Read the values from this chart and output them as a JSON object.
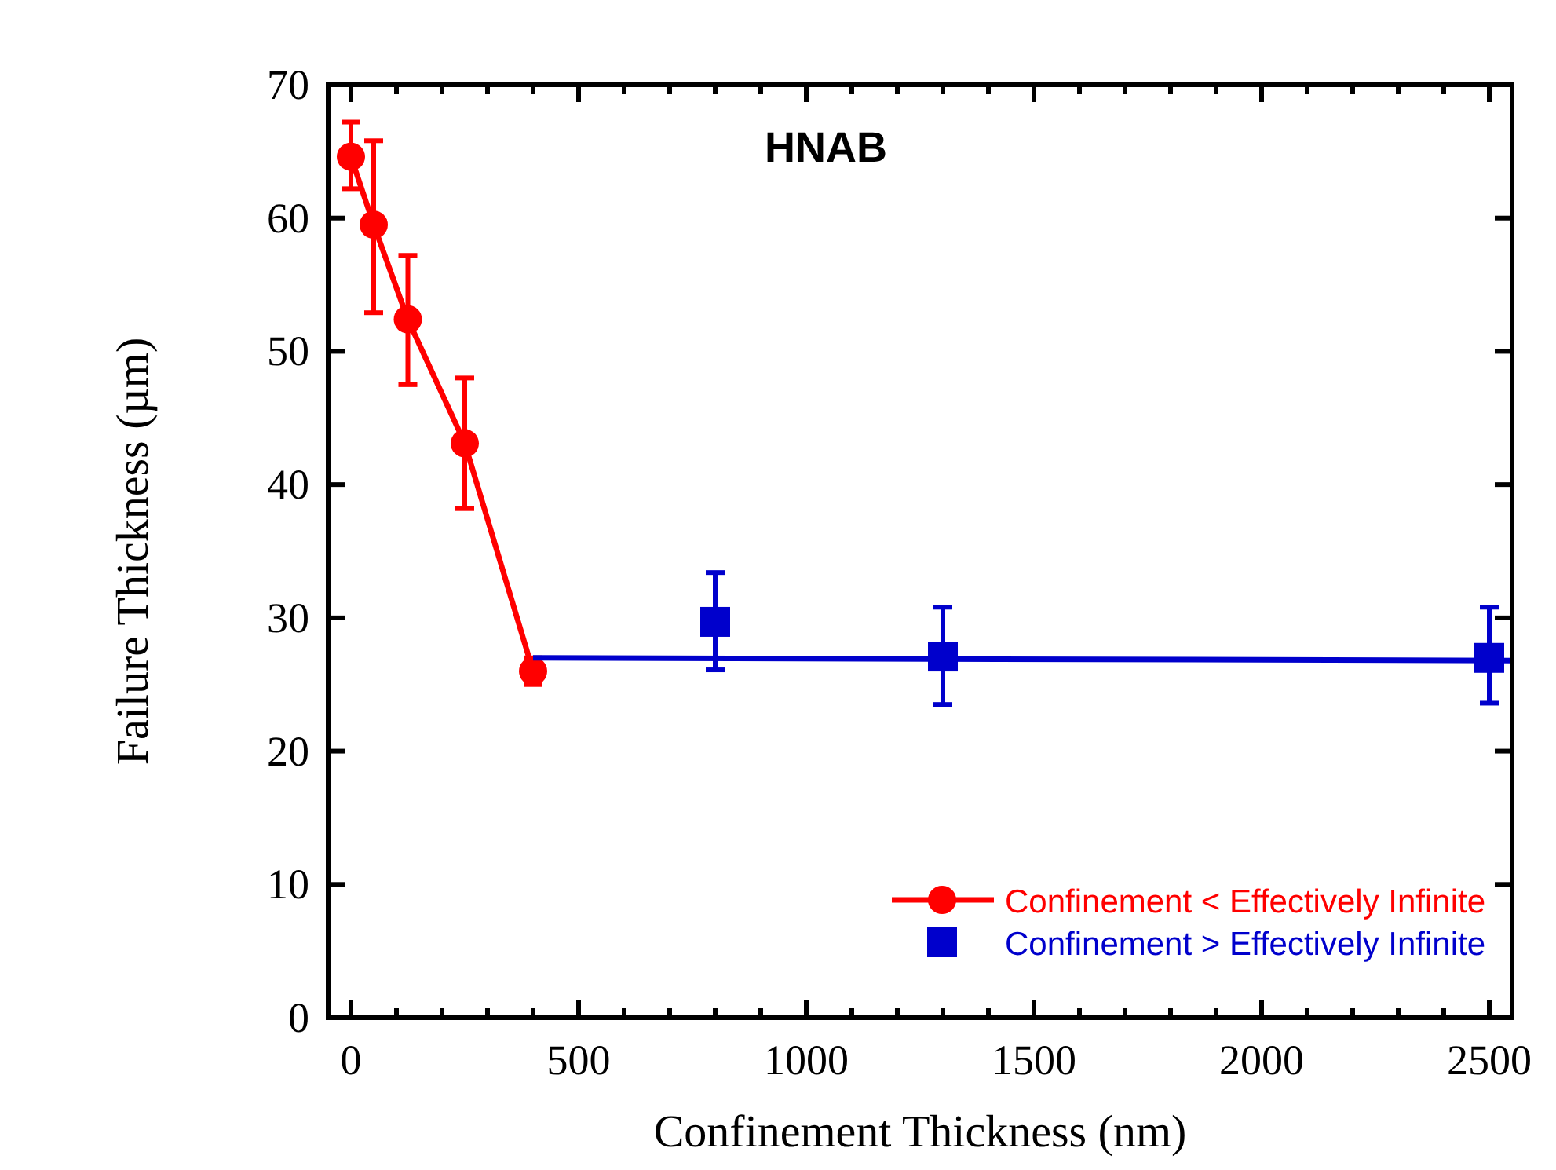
{
  "chart_data": {
    "type": "line",
    "title": "HNAB",
    "xlabel": "Confinement Thickness (nm)",
    "ylabel": "Failure Thickness (µm)",
    "xlim": [
      -50,
      2550
    ],
    "xticks": [
      0,
      {
        "value": 100,
        "label": null
      },
      {
        "value": 200,
        "label": null
      },
      {
        "value": 300,
        "label": null
      },
      {
        "value": 400,
        "label": null
      },
      500,
      {
        "value": 600,
        "label": null
      },
      {
        "value": 700,
        "label": null
      },
      {
        "value": 800,
        "label": null
      },
      {
        "value": 900,
        "label": null
      },
      1000,
      {
        "value": 1100,
        "label": null
      },
      {
        "value": 1200,
        "label": null
      },
      {
        "value": 1300,
        "label": null
      },
      {
        "value": 1400,
        "label": null
      },
      1500,
      {
        "value": 1600,
        "label": null
      },
      {
        "value": 1700,
        "label": null
      },
      {
        "value": 1800,
        "label": null
      },
      {
        "value": 1900,
        "label": null
      },
      2000,
      {
        "value": 2100,
        "label": null
      },
      {
        "value": 2200,
        "label": null
      },
      {
        "value": 2300,
        "label": null
      },
      {
        "value": 2400,
        "label": null
      },
      2500
    ],
    "ylim": [
      0,
      70
    ],
    "yticks": [
      0,
      10,
      20,
      30,
      40,
      50,
      60,
      70
    ],
    "grid": false,
    "legend": "bottom right",
    "line_style": "solid",
    "series": [
      {
        "name": "Confinement < Effectively Infinite",
        "marker": "circle",
        "color": "#ff0000",
        "x": [
          0,
          50,
          125,
          250,
          400
        ],
        "values": [
          64.6,
          59.5,
          52.4,
          43.1,
          26.0
        ],
        "errors": [
          [
            62.2,
            67.2
          ],
          [
            52.9,
            65.8
          ],
          [
            47.5,
            57.2
          ],
          [
            38.2,
            48.0
          ],
          [
            25.0,
            27.0
          ]
        ]
      },
      {
        "name": "Confinement > Effectively Infinite",
        "type": "scatter",
        "marker": "square",
        "color": "#0000cc",
        "x": [
          800,
          1300,
          2500
        ],
        "values": [
          29.7,
          27.1,
          27.0
        ],
        "errors": [
          [
            26.1,
            33.4
          ],
          [
            23.5,
            30.8
          ],
          [
            23.6,
            30.8
          ]
        ]
      },
      {
        "marker": "none",
        "color": "#0000cc",
        "x": [
          400,
          2550
        ],
        "values": [
          27.0,
          26.8
        ]
      }
    ]
  }
}
